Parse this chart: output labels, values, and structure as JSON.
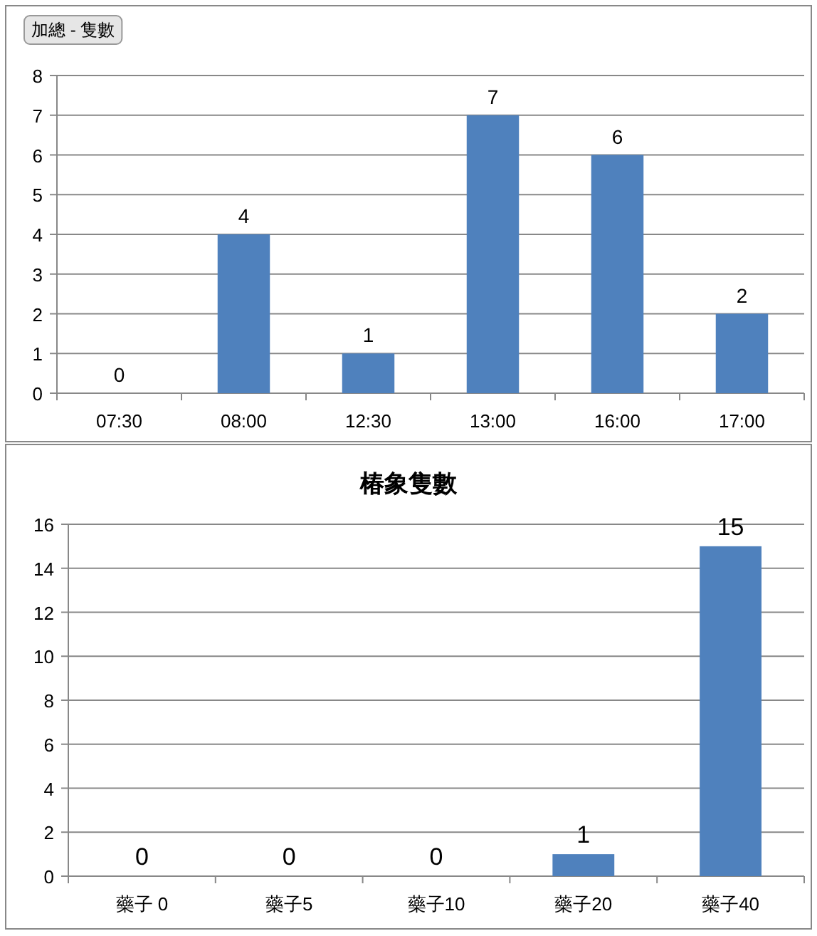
{
  "chart_data": [
    {
      "type": "bar",
      "annotations": [
        "加總 - 隻數"
      ],
      "categories": [
        "07:30",
        "08:00",
        "12:30",
        "13:00",
        "16:00",
        "17:00"
      ],
      "values": [
        0,
        4,
        1,
        7,
        6,
        2
      ],
      "color": "#4f81bd",
      "ylim": [
        0,
        8
      ],
      "yticks": [
        0,
        1,
        2,
        3,
        4,
        5,
        6,
        7,
        8
      ],
      "grid": "y",
      "data_labels": true
    },
    {
      "type": "bar",
      "title": "椿象隻數",
      "categories": [
        "藥子 0",
        "藥子5",
        "藥子10",
        "藥子20",
        "藥子40"
      ],
      "values": [
        0,
        0,
        0,
        1,
        15
      ],
      "color": "#4f81bd",
      "ylim": [
        0,
        16
      ],
      "yticks": [
        0,
        2,
        4,
        6,
        8,
        10,
        12,
        14,
        16
      ],
      "grid": "y",
      "data_labels": true
    }
  ]
}
